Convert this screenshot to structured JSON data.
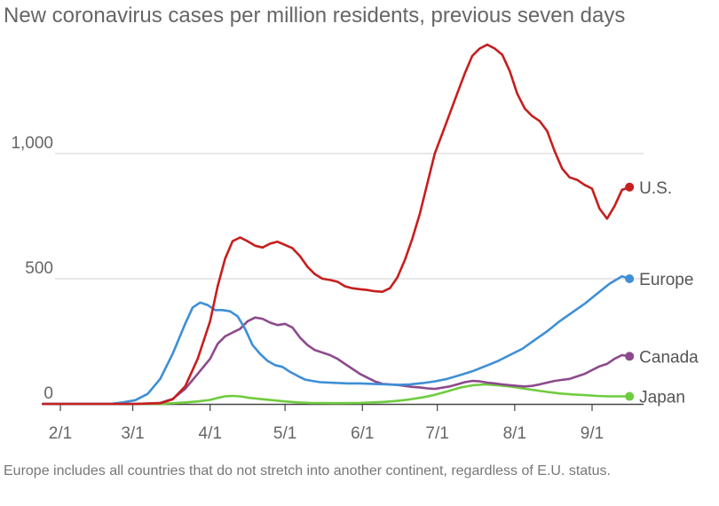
{
  "chart_data": {
    "type": "line",
    "title": "New coronavirus cases per million residents, previous seven days",
    "note": "Europe includes all countries that do not stretch into another continent, regardless of E.U. status.",
    "x_ticks": [
      "2/1",
      "3/1",
      "4/1",
      "5/1",
      "6/1",
      "7/1",
      "8/1",
      "9/1"
    ],
    "y_ticks": [
      "0",
      "500",
      "1,000"
    ],
    "y_tick_values": [
      0,
      500,
      1000
    ],
    "ylim": [
      0,
      1440
    ],
    "x_range_days": [
      -7,
      224
    ],
    "grid": "horizontal",
    "series": [
      {
        "name": "U.S.",
        "color": "#c71e1e",
        "points": [
          [
            -7,
            0
          ],
          [
            30,
            0
          ],
          [
            40,
            3
          ],
          [
            45,
            18
          ],
          [
            50,
            70
          ],
          [
            55,
            180
          ],
          [
            60,
            330
          ],
          [
            63,
            470
          ],
          [
            66,
            580
          ],
          [
            69,
            650
          ],
          [
            72,
            665
          ],
          [
            75,
            650
          ],
          [
            78,
            632
          ],
          [
            81,
            625
          ],
          [
            84,
            640
          ],
          [
            87,
            648
          ],
          [
            90,
            635
          ],
          [
            93,
            622
          ],
          [
            96,
            590
          ],
          [
            99,
            548
          ],
          [
            102,
            518
          ],
          [
            105,
            500
          ],
          [
            108,
            495
          ],
          [
            111,
            488
          ],
          [
            114,
            470
          ],
          [
            117,
            462
          ],
          [
            120,
            458
          ],
          [
            123,
            455
          ],
          [
            126,
            450
          ],
          [
            129,
            448
          ],
          [
            132,
            462
          ],
          [
            135,
            505
          ],
          [
            138,
            575
          ],
          [
            141,
            660
          ],
          [
            144,
            760
          ],
          [
            147,
            880
          ],
          [
            150,
            1000
          ],
          [
            153,
            1080
          ],
          [
            156,
            1160
          ],
          [
            159,
            1240
          ],
          [
            162,
            1320
          ],
          [
            165,
            1390
          ],
          [
            168,
            1420
          ],
          [
            171,
            1435
          ],
          [
            174,
            1420
          ],
          [
            177,
            1395
          ],
          [
            180,
            1330
          ],
          [
            183,
            1240
          ],
          [
            186,
            1180
          ],
          [
            189,
            1150
          ],
          [
            192,
            1130
          ],
          [
            195,
            1090
          ],
          [
            198,
            1010
          ],
          [
            201,
            940
          ],
          [
            204,
            905
          ],
          [
            207,
            895
          ],
          [
            210,
            875
          ],
          [
            213,
            860
          ],
          [
            216,
            780
          ],
          [
            219,
            740
          ],
          [
            222,
            790
          ],
          [
            225,
            855
          ],
          [
            228,
            866
          ]
        ]
      },
      {
        "name": "Europe",
        "color": "#3e8fd6",
        "points": [
          [
            -7,
            0
          ],
          [
            20,
            0
          ],
          [
            25,
            6
          ],
          [
            30,
            15
          ],
          [
            35,
            40
          ],
          [
            40,
            100
          ],
          [
            45,
            200
          ],
          [
            50,
            320
          ],
          [
            53,
            385
          ],
          [
            56,
            405
          ],
          [
            59,
            395
          ],
          [
            62,
            375
          ],
          [
            65,
            375
          ],
          [
            68,
            370
          ],
          [
            71,
            350
          ],
          [
            74,
            300
          ],
          [
            77,
            235
          ],
          [
            80,
            200
          ],
          [
            83,
            172
          ],
          [
            86,
            155
          ],
          [
            89,
            148
          ],
          [
            92,
            128
          ],
          [
            95,
            112
          ],
          [
            98,
            97
          ],
          [
            101,
            92
          ],
          [
            104,
            87
          ],
          [
            110,
            84
          ],
          [
            115,
            82
          ],
          [
            120,
            82
          ],
          [
            125,
            80
          ],
          [
            130,
            78
          ],
          [
            135,
            76
          ],
          [
            140,
            78
          ],
          [
            145,
            83
          ],
          [
            150,
            90
          ],
          [
            155,
            100
          ],
          [
            160,
            115
          ],
          [
            165,
            130
          ],
          [
            170,
            150
          ],
          [
            175,
            170
          ],
          [
            180,
            195
          ],
          [
            185,
            220
          ],
          [
            190,
            255
          ],
          [
            195,
            290
          ],
          [
            200,
            330
          ],
          [
            205,
            365
          ],
          [
            210,
            400
          ],
          [
            215,
            440
          ],
          [
            220,
            480
          ],
          [
            225,
            510
          ],
          [
            228,
            500
          ]
        ]
      },
      {
        "name": "Canada",
        "color": "#8c4a8c",
        "points": [
          [
            -7,
            0
          ],
          [
            30,
            0
          ],
          [
            40,
            4
          ],
          [
            45,
            20
          ],
          [
            50,
            60
          ],
          [
            55,
            120
          ],
          [
            60,
            180
          ],
          [
            63,
            240
          ],
          [
            66,
            270
          ],
          [
            69,
            285
          ],
          [
            72,
            300
          ],
          [
            75,
            330
          ],
          [
            78,
            345
          ],
          [
            81,
            340
          ],
          [
            84,
            325
          ],
          [
            87,
            315
          ],
          [
            90,
            320
          ],
          [
            93,
            305
          ],
          [
            96,
            265
          ],
          [
            99,
            235
          ],
          [
            102,
            215
          ],
          [
            105,
            205
          ],
          [
            108,
            195
          ],
          [
            111,
            180
          ],
          [
            114,
            160
          ],
          [
            117,
            140
          ],
          [
            120,
            120
          ],
          [
            123,
            105
          ],
          [
            126,
            90
          ],
          [
            129,
            80
          ],
          [
            132,
            78
          ],
          [
            135,
            76
          ],
          [
            138,
            72
          ],
          [
            141,
            68
          ],
          [
            144,
            66
          ],
          [
            147,
            62
          ],
          [
            150,
            60
          ],
          [
            153,
            65
          ],
          [
            156,
            70
          ],
          [
            159,
            78
          ],
          [
            162,
            87
          ],
          [
            165,
            92
          ],
          [
            168,
            90
          ],
          [
            171,
            85
          ],
          [
            174,
            82
          ],
          [
            177,
            78
          ],
          [
            180,
            75
          ],
          [
            183,
            72
          ],
          [
            186,
            70
          ],
          [
            189,
            72
          ],
          [
            192,
            78
          ],
          [
            195,
            85
          ],
          [
            198,
            92
          ],
          [
            201,
            96
          ],
          [
            204,
            100
          ],
          [
            207,
            110
          ],
          [
            210,
            120
          ],
          [
            213,
            135
          ],
          [
            216,
            150
          ],
          [
            219,
            160
          ],
          [
            222,
            180
          ],
          [
            225,
            195
          ],
          [
            228,
            190
          ]
        ]
      },
      {
        "name": "Japan",
        "color": "#6fcc3f",
        "points": [
          [
            -7,
            0
          ],
          [
            40,
            0
          ],
          [
            45,
            3
          ],
          [
            50,
            6
          ],
          [
            55,
            10
          ],
          [
            60,
            16
          ],
          [
            63,
            24
          ],
          [
            66,
            30
          ],
          [
            69,
            32
          ],
          [
            72,
            30
          ],
          [
            75,
            25
          ],
          [
            80,
            20
          ],
          [
            85,
            15
          ],
          [
            90,
            10
          ],
          [
            95,
            6
          ],
          [
            100,
            4
          ],
          [
            110,
            3
          ],
          [
            120,
            4
          ],
          [
            130,
            8
          ],
          [
            135,
            12
          ],
          [
            140,
            18
          ],
          [
            145,
            26
          ],
          [
            150,
            36
          ],
          [
            155,
            50
          ],
          [
            160,
            65
          ],
          [
            165,
            74
          ],
          [
            170,
            78
          ],
          [
            175,
            75
          ],
          [
            180,
            70
          ],
          [
            185,
            62
          ],
          [
            190,
            55
          ],
          [
            195,
            48
          ],
          [
            200,
            42
          ],
          [
            205,
            38
          ],
          [
            210,
            35
          ],
          [
            215,
            32
          ],
          [
            220,
            30
          ],
          [
            225,
            30
          ],
          [
            228,
            30
          ]
        ]
      }
    ]
  }
}
